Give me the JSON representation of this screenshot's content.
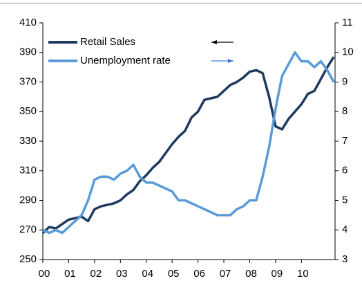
{
  "chart_data": {
    "type": "line",
    "x": [
      0,
      0.25,
      0.5,
      0.75,
      1,
      1.25,
      1.5,
      1.75,
      2,
      2.25,
      2.5,
      2.75,
      3,
      3.25,
      3.5,
      3.75,
      4,
      4.25,
      4.5,
      4.75,
      5,
      5.25,
      5.5,
      5.75,
      6,
      6.25,
      6.5,
      6.75,
      7,
      7.25,
      7.5,
      7.75,
      8,
      8.25,
      8.5,
      8.75,
      9,
      9.25,
      9.5,
      9.75,
      10,
      10.25,
      10.5,
      10.75,
      11,
      11.25
    ],
    "series": [
      {
        "name": "Retail Sales",
        "color": "#1f3a5f",
        "axis": "y",
        "values": [
          268,
          272,
          271,
          274,
          277,
          278,
          279,
          276,
          284,
          286,
          287,
          288,
          290,
          294,
          297,
          303,
          307,
          312,
          316,
          322,
          328,
          333,
          337,
          346,
          350,
          358,
          359,
          360,
          364,
          368,
          370,
          373,
          377,
          378,
          376,
          360,
          340,
          338,
          345,
          350,
          355,
          362,
          364,
          372,
          380,
          387
        ]
      },
      {
        "name": "Unemployment rate",
        "color": "#5b9bd5",
        "axis": "y2",
        "values": [
          4.0,
          3.9,
          4.0,
          3.9,
          4.1,
          4.3,
          4.5,
          5.0,
          5.7,
          5.8,
          5.8,
          5.7,
          5.9,
          6.0,
          6.2,
          5.8,
          5.6,
          5.6,
          5.5,
          5.4,
          5.3,
          5.0,
          5.0,
          4.9,
          4.8,
          4.7,
          4.6,
          4.5,
          4.5,
          4.5,
          4.7,
          4.8,
          5.0,
          5.0,
          5.8,
          6.8,
          8.1,
          9.2,
          9.6,
          10.0,
          9.7,
          9.7,
          9.5,
          9.7,
          9.4,
          9.0
        ]
      }
    ],
    "xlim": [
      0,
      11.3
    ],
    "xticks": [
      {
        "value": 0,
        "label": "00"
      },
      {
        "value": 1,
        "label": "01"
      },
      {
        "value": 2,
        "label": "02"
      },
      {
        "value": 3,
        "label": "03"
      },
      {
        "value": 4,
        "label": "04"
      },
      {
        "value": 5,
        "label": "05"
      },
      {
        "value": 6,
        "label": "06"
      },
      {
        "value": 7,
        "label": "07"
      },
      {
        "value": 8,
        "label": "08"
      },
      {
        "value": 9,
        "label": "09"
      },
      {
        "value": 10,
        "label": "10"
      }
    ],
    "ylim": [
      250,
      410
    ],
    "yticks": [
      250,
      270,
      290,
      310,
      330,
      350,
      370,
      390,
      410
    ],
    "y2lim": [
      3,
      11
    ],
    "y2ticks": [
      3,
      4,
      5,
      6,
      7,
      8,
      9,
      10,
      11
    ],
    "legend": "top-left",
    "grid": false
  }
}
